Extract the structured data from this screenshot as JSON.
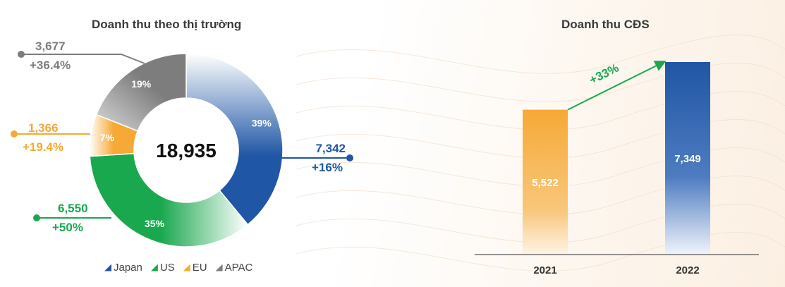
{
  "chart_data": [
    {
      "type": "pie",
      "title": "Doanh thu theo thị trường",
      "center_label": "18,935",
      "slices": [
        {
          "name": "Japan",
          "percent": 39,
          "label": "39%",
          "value": "7,342",
          "growth": "+16%",
          "color": "#1f56a5"
        },
        {
          "name": "US",
          "percent": 35,
          "label": "35%",
          "value": "6,550",
          "growth": "+50%",
          "color": "#1aa84f"
        },
        {
          "name": "EU",
          "percent": 7,
          "label": "7%",
          "value": "1,366",
          "growth": "+19.4%",
          "color": "#f6a935"
        },
        {
          "name": "APAC",
          "percent": 19,
          "label": "19%",
          "value": "3,677",
          "growth": "+36.4%",
          "color": "#7d7d7d"
        }
      ],
      "legend": [
        "Japan",
        "US",
        "EU",
        "APAC"
      ],
      "legend_placement": "bottom"
    },
    {
      "type": "bar",
      "title": "Doanh thu CĐS",
      "categories": [
        "2021",
        "2022"
      ],
      "values": [
        5522,
        7349
      ],
      "value_labels": [
        "5,522",
        "7,349"
      ],
      "colors": [
        "#f6a935",
        "#1f56a5"
      ],
      "growth_label": "+33%",
      "growth_color": "#1aa84f",
      "ylim": [
        0,
        7349
      ],
      "grid": false
    }
  ]
}
